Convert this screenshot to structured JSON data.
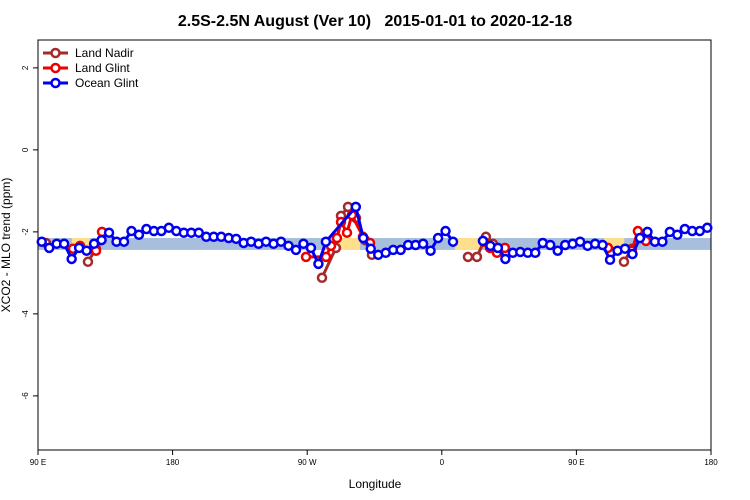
{
  "chart_data": {
    "type": "line",
    "title": "2.5S-2.5N August (Ver 10)   2015-01-01 to 2020-12-18",
    "xlabel": "Longitude",
    "ylabel": "XCO2 - MLO trend (ppm)",
    "xlim": [
      90,
      540
    ],
    "ylim": [
      -7.32,
      2.68
    ],
    "xticks": [
      {
        "value": 90,
        "label": "90 E"
      },
      180,
      {
        "value": 270,
        "label": "90 W"
      },
      {
        "value": 360,
        "label": "0"
      },
      {
        "value": 450,
        "label": "90 E"
      },
      {
        "value": 540,
        "label": "180"
      }
    ],
    "yticks": [
      2,
      0,
      -2,
      -4,
      -6
    ],
    "legend": "upper left",
    "band": {
      "ylim": [
        -2.44,
        -2.15
      ],
      "color": "#a7bfdc"
    },
    "highlights": {
      "color": "#ffdf8c",
      "ranges": [
        [
          112.7,
          124.8
        ],
        [
          288.6,
          305.3
        ],
        [
          368.8,
          385.5
        ],
        [
          468.5,
          482.0
        ]
      ]
    },
    "series": [
      {
        "name": "Land Nadir",
        "color": "#a52a2a",
        "x": [
          95.3,
          null,
          123.4,
          128.8,
          null,
          279.9,
          289.2,
          292.6,
          297.3,
          302.6,
          308.6,
          313.3,
          null,
          377.5,
          383.5,
          389.5,
          394.2,
          398.9,
          null,
          481.8,
          487.1
        ],
        "values": [
          -2.27,
          null,
          -2.73,
          -2.41,
          null,
          -3.12,
          -2.39,
          -1.61,
          -1.39,
          -1.66,
          -2.2,
          -2.56,
          null,
          -2.61,
          -2.61,
          -2.12,
          -2.29,
          -2.44,
          null,
          -2.73,
          -2.41
        ]
      },
      {
        "name": "Land Glint",
        "color": "#ee0000",
        "x": [
          113.4,
          118.1,
          null,
          128.8,
          132.8,
          null,
          269.2,
          282.6,
          285.9,
          289.9,
          292.6,
          296.6,
          299.9,
          307.3,
          312.0,
          null,
          388.2,
          392.2,
          396.9,
          402.2,
          null,
          471.1,
          487.1,
          491.1,
          496.5
        ],
        "values": [
          -2.41,
          -2.34,
          null,
          -2.46,
          -2.0,
          null,
          -2.61,
          -2.61,
          -2.34,
          -2.15,
          -1.76,
          -2.02,
          -1.59,
          -2.12,
          -2.27,
          null,
          -2.24,
          -2.39,
          -2.51,
          -2.39,
          null,
          -2.39,
          -2.46,
          -1.98,
          -2.22
        ]
      },
      {
        "name": "Ocean Glint",
        "color": "#0000ee",
        "x": [
          92.5,
          97.5,
          102.5,
          107.5,
          112.5,
          117.5,
          122.5,
          127.5,
          132.5,
          137.5,
          142.5,
          147.5,
          152.5,
          157.5,
          162.5,
          167.5,
          172.5,
          177.5,
          182.5,
          187.5,
          192.5,
          197.5,
          202.5,
          207.5,
          212.5,
          217.5,
          222.5,
          227.5,
          232.5,
          237.5,
          242.5,
          247.5,
          252.5,
          257.5,
          262.5,
          267.5,
          272.5,
          277.5,
          282.5,
          302.5,
          307.5,
          312.5,
          317.5,
          322.5,
          327.5,
          332.5,
          337.5,
          342.5,
          347.5,
          352.5,
          357.5,
          362.5,
          367.5,
          null,
          387.5,
          392.5,
          397.5,
          402.5,
          407.5,
          412.5,
          417.5,
          422.5,
          427.5,
          432.5,
          437.5,
          442.5,
          447.5,
          452.5,
          457.5,
          462.5,
          467.5,
          472.5,
          477.5,
          482.5,
          487.5,
          492.5,
          497.5,
          502.5,
          507.5,
          512.5,
          517.5,
          522.5,
          527.5,
          532.5,
          537.5
        ],
        "values": [
          -2.24,
          -2.39,
          -2.29,
          -2.29,
          -2.66,
          -2.39,
          -2.46,
          -2.29,
          -2.2,
          -2.02,
          -2.24,
          -2.24,
          -1.98,
          -2.07,
          -1.93,
          -1.98,
          -1.98,
          -1.9,
          -1.98,
          -2.02,
          -2.02,
          -2.02,
          -2.12,
          -2.12,
          -2.12,
          -2.15,
          -2.17,
          -2.27,
          -2.24,
          -2.29,
          -2.24,
          -2.29,
          -2.24,
          -2.34,
          -2.44,
          -2.29,
          -2.39,
          -2.78,
          -2.24,
          -1.39,
          -2.15,
          -2.41,
          -2.56,
          -2.51,
          -2.44,
          -2.44,
          -2.32,
          -2.32,
          -2.29,
          -2.46,
          -2.15,
          -1.98,
          -2.24,
          null,
          -2.22,
          -2.34,
          -2.39,
          -2.66,
          -2.51,
          -2.49,
          -2.51,
          -2.51,
          -2.27,
          -2.32,
          -2.46,
          -2.32,
          -2.29,
          -2.24,
          -2.34,
          -2.29,
          -2.32,
          -2.68,
          -2.46,
          -2.41,
          -2.54,
          -2.15,
          -2.0,
          -2.24,
          -2.24,
          -2.0,
          -2.07,
          -1.93,
          -1.98,
          -1.98,
          -1.9
        ]
      }
    ]
  }
}
